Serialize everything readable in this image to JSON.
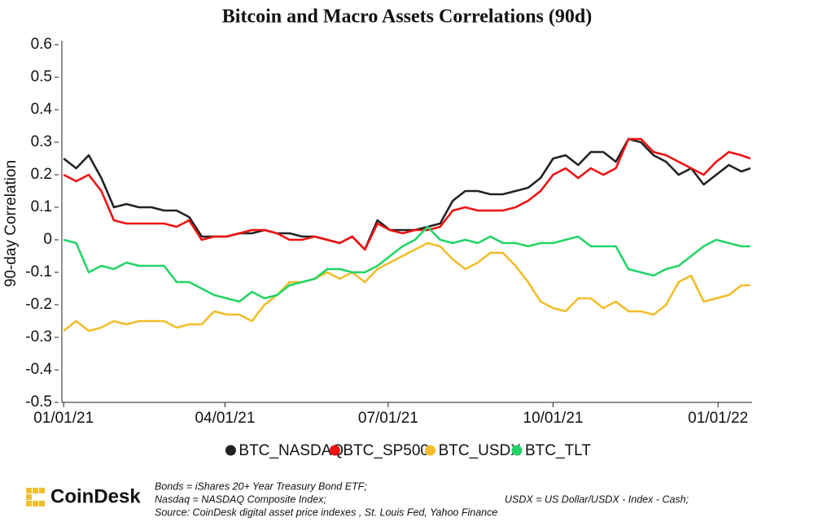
{
  "chart_data": {
    "type": "line",
    "title": "Bitcoin and Macro Assets Correlations (90d)",
    "y_label": "90-day Correlation",
    "x": [
      "2021-01-01",
      "2021-01-08",
      "2021-01-15",
      "2021-01-22",
      "2021-01-29",
      "2021-02-05",
      "2021-02-12",
      "2021-02-19",
      "2021-02-26",
      "2021-03-05",
      "2021-03-12",
      "2021-03-19",
      "2021-03-26",
      "2021-04-02",
      "2021-04-09",
      "2021-04-16",
      "2021-04-23",
      "2021-04-30",
      "2021-05-07",
      "2021-05-14",
      "2021-05-21",
      "2021-05-28",
      "2021-06-04",
      "2021-06-11",
      "2021-06-18",
      "2021-06-25",
      "2021-07-02",
      "2021-07-09",
      "2021-07-16",
      "2021-07-23",
      "2021-07-30",
      "2021-08-06",
      "2021-08-13",
      "2021-08-20",
      "2021-08-27",
      "2021-09-03",
      "2021-09-10",
      "2021-09-17",
      "2021-09-24",
      "2021-10-01",
      "2021-10-08",
      "2021-10-15",
      "2021-10-22",
      "2021-10-29",
      "2021-11-05",
      "2021-11-12",
      "2021-11-19",
      "2021-11-26",
      "2021-12-03",
      "2021-12-10",
      "2021-12-17",
      "2021-12-24",
      "2021-12-31",
      "2022-01-07",
      "2022-01-14",
      "2022-01-19"
    ],
    "series": [
      {
        "name": "BTC_NASDAQ",
        "color": "#222222",
        "values": [
          0.25,
          0.22,
          0.26,
          0.19,
          0.1,
          0.11,
          0.1,
          0.1,
          0.09,
          0.09,
          0.07,
          0.01,
          0.01,
          0.01,
          0.02,
          0.02,
          0.03,
          0.02,
          0.02,
          0.01,
          0.01,
          0.0,
          -0.01,
          0.01,
          -0.03,
          0.06,
          0.03,
          0.03,
          0.03,
          0.04,
          0.05,
          0.12,
          0.15,
          0.15,
          0.14,
          0.14,
          0.15,
          0.16,
          0.19,
          0.25,
          0.26,
          0.23,
          0.27,
          0.27,
          0.24,
          0.31,
          0.3,
          0.26,
          0.24,
          0.2,
          0.22,
          0.17,
          0.2,
          0.23,
          0.21,
          0.22
        ]
      },
      {
        "name": "BTC_SP500",
        "color": "#ee1111",
        "values": [
          0.2,
          0.18,
          0.2,
          0.15,
          0.06,
          0.05,
          0.05,
          0.05,
          0.05,
          0.04,
          0.06,
          0.0,
          0.01,
          0.01,
          0.02,
          0.03,
          0.03,
          0.02,
          0.0,
          0.0,
          0.01,
          0.0,
          -0.01,
          0.01,
          -0.03,
          0.05,
          0.03,
          0.02,
          0.03,
          0.03,
          0.04,
          0.09,
          0.1,
          0.09,
          0.09,
          0.09,
          0.1,
          0.12,
          0.15,
          0.2,
          0.22,
          0.19,
          0.22,
          0.2,
          0.22,
          0.31,
          0.31,
          0.27,
          0.26,
          0.24,
          0.22,
          0.2,
          0.24,
          0.27,
          0.26,
          0.25
        ]
      },
      {
        "name": "BTC_USDX",
        "color": "#f2bd2a",
        "values": [
          -0.28,
          -0.25,
          -0.28,
          -0.27,
          -0.25,
          -0.26,
          -0.25,
          -0.25,
          -0.25,
          -0.27,
          -0.26,
          -0.26,
          -0.22,
          -0.23,
          -0.23,
          -0.25,
          -0.2,
          -0.17,
          -0.13,
          -0.13,
          -0.12,
          -0.1,
          -0.12,
          -0.1,
          -0.13,
          -0.09,
          -0.07,
          -0.05,
          -0.03,
          -0.01,
          -0.02,
          -0.06,
          -0.09,
          -0.07,
          -0.04,
          -0.04,
          -0.08,
          -0.13,
          -0.19,
          -0.21,
          -0.22,
          -0.18,
          -0.18,
          -0.21,
          -0.19,
          -0.22,
          -0.22,
          -0.23,
          -0.2,
          -0.13,
          -0.11,
          -0.19,
          -0.18,
          -0.17,
          -0.14,
          -0.14
        ]
      },
      {
        "name": "BTC_TLT",
        "color": "#22d466",
        "values": [
          0.0,
          -0.01,
          -0.1,
          -0.08,
          -0.09,
          -0.07,
          -0.08,
          -0.08,
          -0.08,
          -0.13,
          -0.13,
          -0.15,
          -0.17,
          -0.18,
          -0.19,
          -0.16,
          -0.18,
          -0.17,
          -0.14,
          -0.13,
          -0.12,
          -0.09,
          -0.09,
          -0.1,
          -0.1,
          -0.08,
          -0.05,
          -0.02,
          0.0,
          0.04,
          0.0,
          -0.01,
          0.0,
          -0.01,
          0.01,
          -0.01,
          -0.01,
          -0.02,
          -0.01,
          -0.01,
          0.0,
          0.01,
          -0.02,
          -0.02,
          -0.02,
          -0.09,
          -0.1,
          -0.11,
          -0.09,
          -0.08,
          -0.05,
          -0.02,
          0.0,
          -0.01,
          -0.02,
          -0.02
        ]
      }
    ],
    "xlim": [
      "2020-12-31",
      "2022-01-20"
    ],
    "xticks": [
      {
        "value": "2021-01-01",
        "label": "01/01/21"
      },
      {
        "value": "2021-04-01",
        "label": "04/01/21"
      },
      {
        "value": "2021-07-01",
        "label": "07/01/21"
      },
      {
        "value": "2021-10-01",
        "label": "10/01/21"
      },
      {
        "value": "2022-01-01",
        "label": "01/01/22"
      }
    ],
    "ylim": [
      -0.5,
      0.6
    ],
    "yticks": [
      0.6,
      0.5,
      0.4,
      0.3,
      0.2,
      0.1,
      0,
      -0.1,
      -0.2,
      -0.3,
      -0.4,
      -0.5
    ],
    "legend": "bottom",
    "logo": "CoinDesk",
    "notes": [
      "Bonds = iShares 20+ Year Treasury Bond ETF;",
      "Nasdaq = NASDAQ Composite Index;",
      "USDX = US Dollar/USDX - Index - Cash;",
      "Source: CoinDesk digital asset price indexes , St. Louis Fed, Yahoo Finance"
    ]
  }
}
